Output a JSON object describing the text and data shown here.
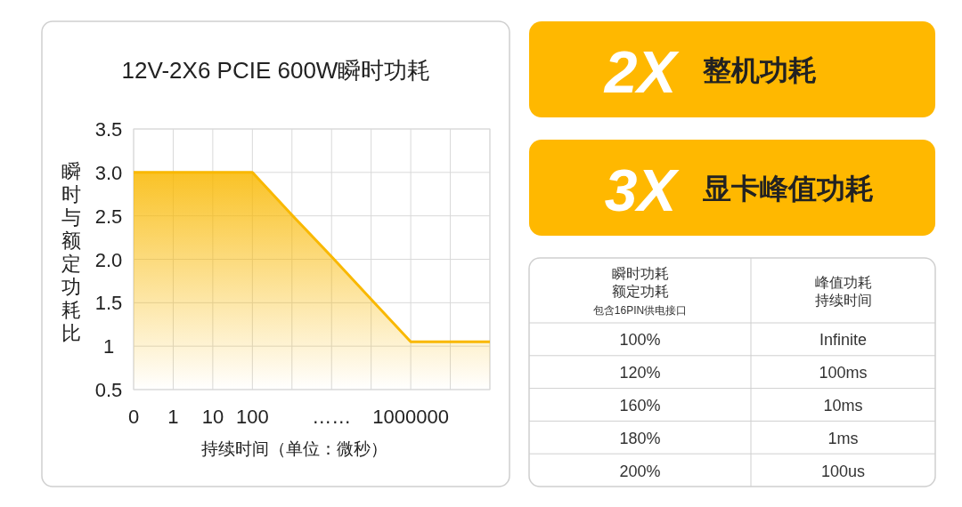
{
  "chart_data": [
    {
      "type": "area",
      "title": "12V-2X6 PCIE 600W瞬时功耗",
      "xlabel": "持续时间（单位：微秒）",
      "ylabel": "瞬时与额定功耗比",
      "color": "#f9b800",
      "grid": true,
      "categories": [
        "0",
        "1",
        "10",
        "100",
        null,
        "……",
        null,
        "1000000",
        null,
        null
      ],
      "values": [
        3.0,
        3.0,
        3.0,
        3.0,
        2.51,
        2.03,
        1.54,
        1.05,
        1.05,
        1.05
      ],
      "ylim": [
        0.5,
        3.5
      ],
      "yticks": [
        0.5,
        1,
        1.5,
        {
          "value": 2,
          "label": "2.0"
        },
        2.5,
        {
          "value": 3,
          "label": "3.0"
        },
        3.5
      ]
    },
    {
      "type": "other",
      "color": "#ffb800",
      "annotations": [
        "2X",
        "整机功耗"
      ]
    },
    {
      "type": "other",
      "color": "#ffb800",
      "annotations": [
        "3X",
        "显卡峰值功耗"
      ]
    },
    {
      "type": "other",
      "categories": [
        "瞬时功耗额定功耗",
        "峰值功耗持续时间"
      ],
      "annotations": [
        "包含16PIN供电接口",
        "100%",
        "Infinite",
        "120%",
        "100ms",
        "160%",
        "10ms",
        "180%",
        "1ms",
        "200%",
        "100us"
      ]
    }
  ]
}
